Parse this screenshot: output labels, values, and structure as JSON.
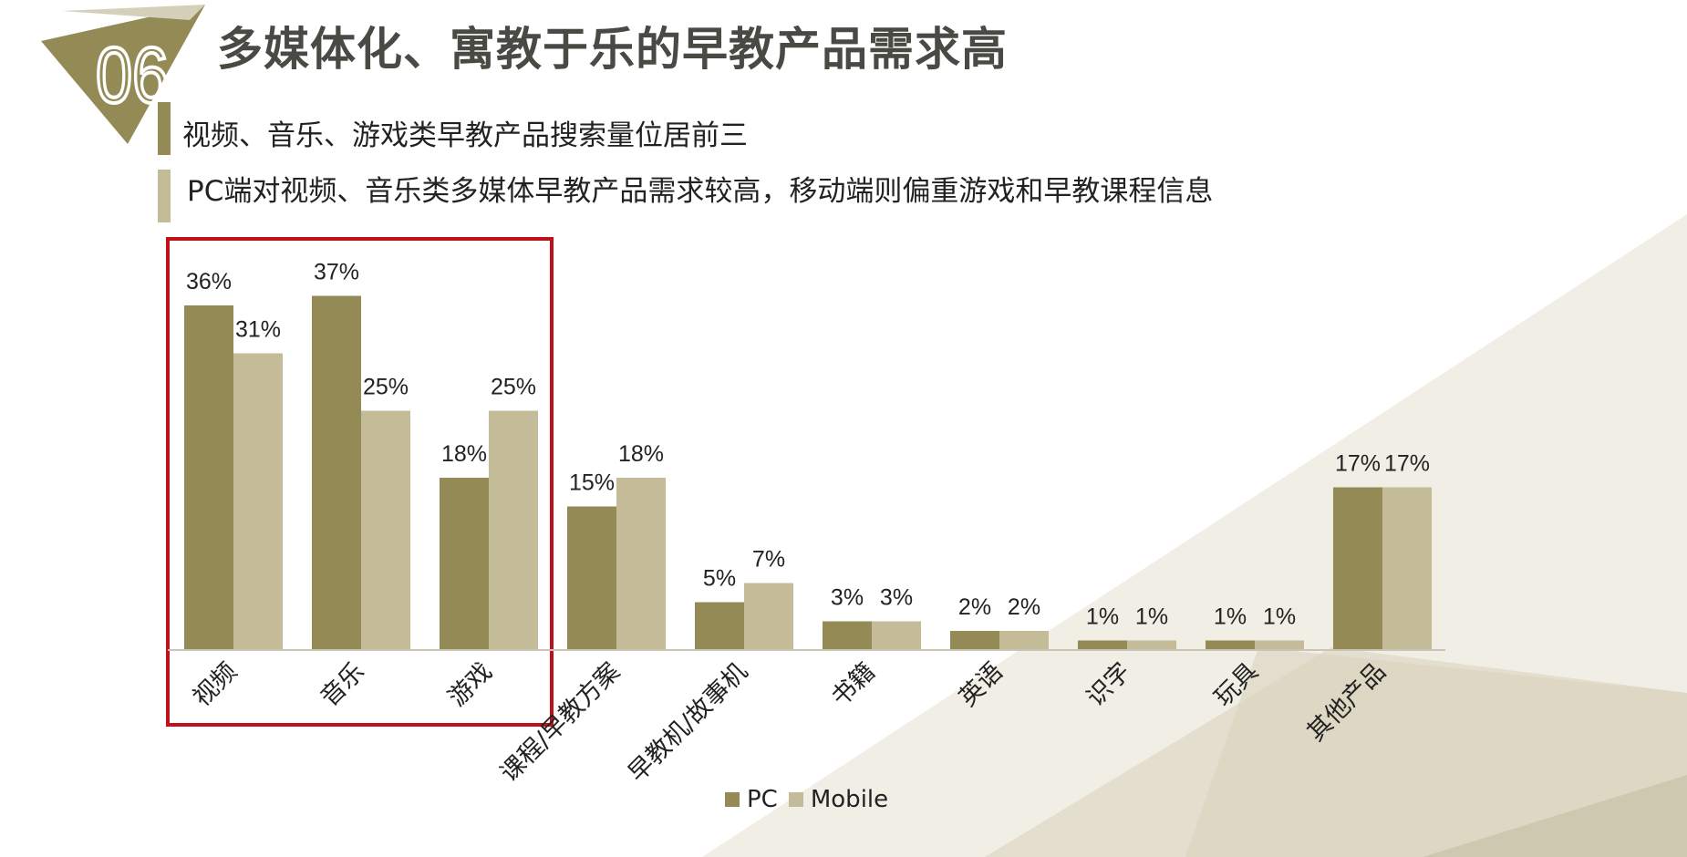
{
  "slide": {
    "number": "06",
    "title": "多媒体化、寓教于乐的早教产品需求高",
    "bullets": [
      "视频、音乐、游戏类早教产品搜索量位居前三",
      "PC端对视频、音乐类多媒体早教产品需求较高，移动端则偏重游戏和早教课程信息"
    ]
  },
  "colors": {
    "pc": "#948a55",
    "mobile": "#c4bc99",
    "highlight_box": "#c0101a",
    "accent": "#948a55",
    "bg_light": "#ece8de"
  },
  "chart_data": {
    "type": "bar",
    "categories": [
      "视频",
      "音乐",
      "游戏",
      "课程/早教方案",
      "早教机/故事机",
      "书籍",
      "英语",
      "识字",
      "玩具",
      "其他产品"
    ],
    "series": [
      {
        "name": "PC",
        "values": [
          36,
          37,
          18,
          15,
          5,
          3,
          2,
          1,
          1,
          17
        ],
        "labels": [
          "36%",
          "37%",
          "18%",
          "15%",
          "5%",
          "3%",
          "2%",
          "1%",
          "1%",
          "17%"
        ]
      },
      {
        "name": "Mobile",
        "values": [
          31,
          25,
          25,
          18,
          7,
          3,
          2,
          1,
          1,
          17
        ],
        "labels": [
          "31%",
          "25%",
          "25%",
          "18%",
          "7%",
          "3%",
          "2%",
          "1%",
          "1%",
          "17%"
        ]
      }
    ],
    "highlighted_categories": [
      "视频",
      "音乐",
      "游戏"
    ],
    "legend_position": "bottom",
    "grid": false
  }
}
